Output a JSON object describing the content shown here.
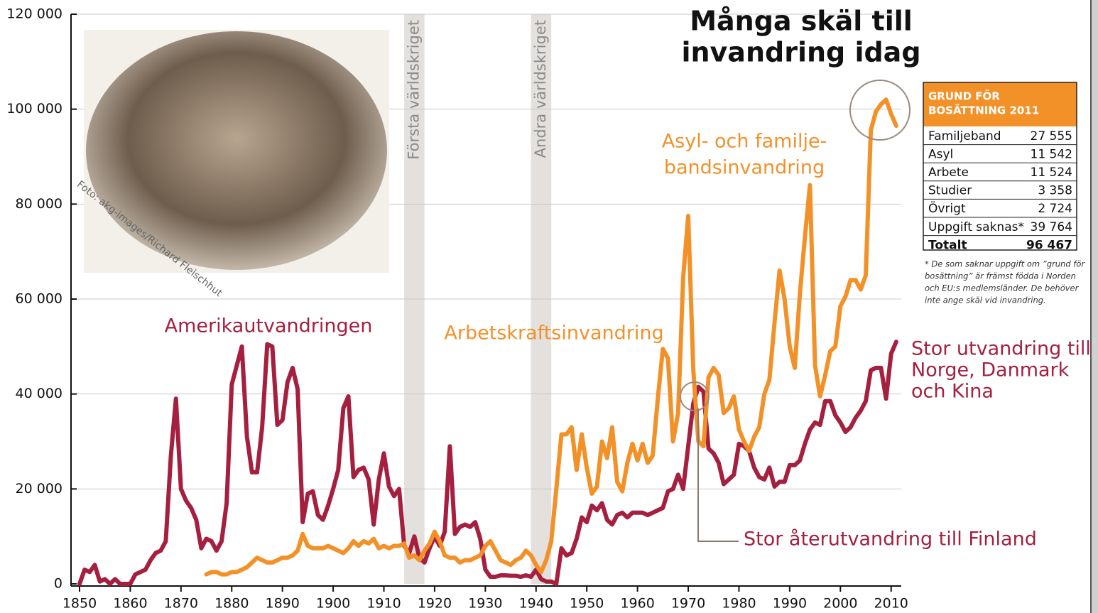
{
  "chart_data": {
    "type": "line",
    "title": [
      "Många skäl till",
      "invandring idag"
    ],
    "x": [
      1850,
      1851,
      1852,
      1853,
      1854,
      1855,
      1856,
      1857,
      1858,
      1859,
      1860,
      1861,
      1862,
      1863,
      1864,
      1865,
      1866,
      1867,
      1868,
      1869,
      1870,
      1871,
      1872,
      1873,
      1874,
      1875,
      1876,
      1877,
      1878,
      1879,
      1880,
      1881,
      1882,
      1883,
      1884,
      1885,
      1886,
      1887,
      1888,
      1889,
      1890,
      1891,
      1892,
      1893,
      1894,
      1895,
      1896,
      1897,
      1898,
      1899,
      1900,
      1901,
      1902,
      1903,
      1904,
      1905,
      1906,
      1907,
      1908,
      1909,
      1910,
      1911,
      1912,
      1913,
      1914,
      1915,
      1916,
      1917,
      1918,
      1919,
      1920,
      1921,
      1922,
      1923,
      1924,
      1925,
      1926,
      1927,
      1928,
      1929,
      1930,
      1931,
      1932,
      1933,
      1934,
      1935,
      1936,
      1937,
      1938,
      1939,
      1940,
      1941,
      1942,
      1943,
      1944,
      1945,
      1946,
      1947,
      1948,
      1949,
      1950,
      1951,
      1952,
      1953,
      1954,
      1955,
      1956,
      1957,
      1958,
      1959,
      1960,
      1961,
      1962,
      1963,
      1964,
      1965,
      1966,
      1967,
      1968,
      1969,
      1970,
      1971,
      1972,
      1973,
      1974,
      1975,
      1976,
      1977,
      1978,
      1979,
      1980,
      1981,
      1982,
      1983,
      1984,
      1985,
      1986,
      1987,
      1988,
      1989,
      1990,
      1991,
      1992,
      1993,
      1994,
      1995,
      1996,
      1997,
      1998,
      1999,
      2000,
      2001,
      2002,
      2003,
      2004,
      2005,
      2006,
      2007,
      2008,
      2009,
      2010,
      2011
    ],
    "series": [
      {
        "color": "#a51f3f",
        "values": [
          0,
          3000,
          2500,
          4000,
          500,
          1000,
          0,
          1000,
          0,
          0,
          0,
          2000,
          2500,
          3000,
          5000,
          6500,
          7000,
          9000,
          27000,
          39000,
          20000,
          17500,
          16000,
          13500,
          7500,
          9500,
          9000,
          7000,
          9000,
          17000,
          42000,
          46000,
          50000,
          31000,
          23500,
          23500,
          33000,
          50500,
          50000,
          33500,
          34500,
          42500,
          45500,
          41000,
          13000,
          19000,
          19500,
          14500,
          13500,
          16500,
          20000,
          24000,
          37000,
          39500,
          22500,
          24000,
          24500,
          22000,
          12500,
          22000,
          27500,
          20500,
          18500,
          20000,
          8000,
          6500,
          10000,
          5500,
          4500,
          7500,
          10000,
          8000,
          11000,
          29000,
          10500,
          12000,
          12500,
          12000,
          13000,
          9500,
          3000,
          1500,
          1500,
          1800,
          1800,
          1700,
          1700,
          1500,
          1800,
          1500,
          3000,
          1000,
          500,
          500,
          0,
          7500,
          6000,
          6500,
          9500,
          14000,
          13000,
          16500,
          15500,
          17000,
          13500,
          12500,
          14500,
          15000,
          14000,
          15000,
          15000,
          15000,
          14500,
          15000,
          15500,
          16000,
          19500,
          20000,
          23000,
          20000,
          29000,
          38000,
          41500,
          40500,
          28500,
          27500,
          25500,
          21000,
          22000,
          23000,
          29500,
          29000,
          28000,
          24500,
          22500,
          22000,
          24500,
          20500,
          21500,
          21500,
          25000,
          25000,
          26000,
          29500,
          32500,
          34000,
          33500,
          38500,
          38500,
          35500,
          34000,
          32000,
          33000,
          35000,
          36500,
          38500,
          45000,
          45500,
          45500,
          39000,
          48500,
          51000
        ]
      },
      {
        "color": "#f39129",
        "values": [
          null,
          null,
          null,
          null,
          null,
          null,
          null,
          null,
          null,
          null,
          null,
          null,
          null,
          null,
          null,
          null,
          null,
          null,
          null,
          null,
          null,
          null,
          null,
          null,
          null,
          2000,
          2500,
          2500,
          2000,
          2000,
          2500,
          2500,
          3000,
          3500,
          4500,
          5500,
          5000,
          4500,
          4500,
          5000,
          5500,
          5500,
          6000,
          7000,
          10500,
          8000,
          7500,
          7500,
          7500,
          8000,
          7500,
          7000,
          6500,
          7500,
          9000,
          8000,
          9000,
          8500,
          9500,
          7500,
          8000,
          7500,
          8000,
          8000,
          8500,
          5500,
          6000,
          5000,
          7000,
          8500,
          11000,
          9000,
          6000,
          5500,
          5500,
          4500,
          5000,
          5000,
          5500,
          6000,
          8000,
          9000,
          7000,
          5000,
          4500,
          4000,
          5000,
          5500,
          7000,
          6000,
          4000,
          2500,
          5000,
          9000,
          20000,
          31500,
          31500,
          33000,
          24000,
          31500,
          24500,
          19000,
          20500,
          30000,
          26500,
          33000,
          21500,
          19500,
          25500,
          29500,
          26000,
          29500,
          25500,
          27000,
          39000,
          49500,
          47500,
          30000,
          36000,
          64500,
          77500,
          45000,
          30000,
          29000,
          43500,
          45500,
          44000,
          36000,
          37000,
          39500,
          32500,
          30000,
          28000,
          31000,
          33000,
          40000,
          43000,
          55000,
          66000,
          60000,
          50000,
          45500,
          61000,
          73000,
          84000,
          46000,
          39500,
          44000,
          49000,
          50000,
          58500,
          60500,
          64000,
          64000,
          62000,
          65000,
          95500,
          99500,
          101000,
          102000,
          99000,
          96500
        ]
      }
    ],
    "xlim": [
      1850,
      2012
    ],
    "ylim": [
      0,
      120000
    ],
    "xticks": [
      1850,
      1860,
      1870,
      1880,
      1890,
      1900,
      1910,
      1920,
      1930,
      1940,
      1950,
      1960,
      1970,
      1980,
      1990,
      2000,
      2010
    ],
    "yticks": [
      0,
      {
        "value": 20000,
        "label": "20 000"
      },
      {
        "value": 40000,
        "label": "40 000"
      },
      {
        "value": 60000,
        "label": "60 000"
      },
      {
        "value": 80000,
        "label": "80 000"
      },
      {
        "value": 100000,
        "label": "100 000"
      },
      {
        "value": 120000,
        "label": "120 000"
      }
    ],
    "grid": true,
    "periods": [
      {
        "label": "Första världskriget",
        "start": 1914,
        "end": 1918
      },
      {
        "label": "Andra världskriget",
        "start": 1939,
        "end": 1943
      }
    ],
    "annotations": [
      [
        "Amerikautvandringen"
      ],
      [
        "Arbetskraftsinvandring"
      ],
      [
        "Asyl- och familje-",
        "bandsinvandring"
      ],
      [
        "Stor utvandring till",
        "Norge, Danmark",
        "och Kina"
      ],
      [
        "Stor återutvandring till Finland"
      ]
    ],
    "photo_credit": "Foto: akg-images/Richard Fleischhut",
    "table": {
      "header": [
        "GRUND FÖR",
        "BOSÄTTNING 2011"
      ],
      "rows": [
        [
          "Familjeband",
          "27 555"
        ],
        [
          "Asyl",
          "11 542"
        ],
        [
          "Arbete",
          "11 524"
        ],
        [
          "Studier",
          "3 358"
        ],
        [
          "Övrigt",
          "2 724"
        ],
        [
          "Uppgift saknas*",
          "39 764"
        ]
      ],
      "total": [
        "Totalt",
        "96 467"
      ],
      "footnote": [
        "* De som saknar uppgift om ”grund för",
        "bosättning” är främst födda i Norden",
        "och EU:s medlemsländer. De behöver",
        "inte ange skäl vid invandring."
      ]
    }
  }
}
